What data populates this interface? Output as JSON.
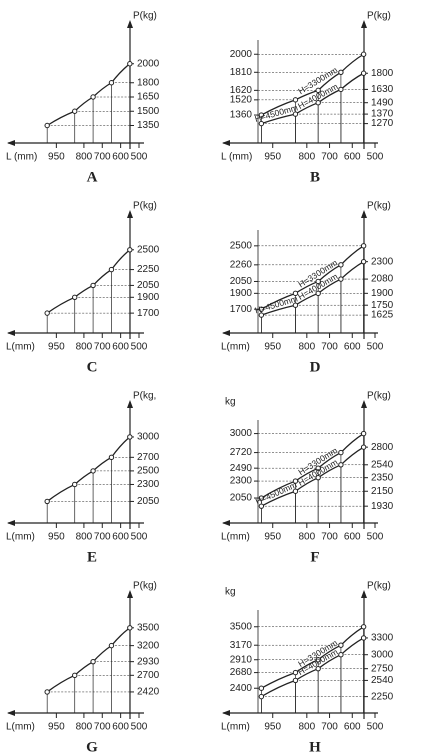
{
  "chart_data": [
    {
      "type": "line",
      "title": "A",
      "xlabel": "L (mm)",
      "ylabel": "P(kg)",
      "color": "#222",
      "x": [
        1000,
        850,
        750,
        650,
        550
      ],
      "xlim": [
        1050,
        500
      ],
      "xticks": [
        950,
        800,
        700,
        600,
        500
      ],
      "values": [
        1350,
        1500,
        1650,
        1800,
        2000
      ],
      "ylim": [
        1250,
        2250
      ],
      "yticks": [
        2000,
        1800,
        1650,
        1500,
        1350
      ]
    },
    {
      "type": "line",
      "title": "B",
      "xlabel": "L (mm)",
      "ylabel": "P(kg)",
      "color": "#222",
      "annotation": "H=4500mm",
      "x": [
        1000,
        850,
        750,
        650,
        550
      ],
      "xlim": [
        1050,
        500
      ],
      "xticks": [
        950,
        800,
        700,
        600,
        500
      ],
      "series": [
        {
          "name": "H=3300mm",
          "values": [
            1360,
            1520,
            1620,
            1810,
            2000
          ]
        },
        {
          "name": "H=4000mm",
          "axis": "y2",
          "values": [
            1270,
            1370,
            1490,
            1630,
            1800
          ]
        }
      ],
      "ylim": [
        1150,
        2150
      ],
      "yticks": [
        2000,
        1810,
        1620,
        1520,
        1360
      ],
      "y2lim": [
        1150,
        2150
      ],
      "y2ticks": [
        1800,
        1630,
        1490,
        1370,
        1270
      ]
    },
    {
      "type": "line",
      "title": "C",
      "xlabel": "L(mm)",
      "ylabel": "P(kg)",
      "color": "#222",
      "x": [
        1000,
        850,
        750,
        650,
        550
      ],
      "xlim": [
        1050,
        500
      ],
      "xticks": [
        950,
        800,
        700,
        600,
        500
      ],
      "values": [
        1700,
        1900,
        2050,
        2250,
        2500
      ],
      "ylim": [
        1550,
        2750
      ],
      "yticks": [
        2500,
        2250,
        2050,
        1900,
        1700
      ]
    },
    {
      "type": "line",
      "title": "D",
      "xlabel": "L(mm)",
      "ylabel": "P(kg)",
      "color": "#222",
      "annotation": "H=4500mm",
      "x": [
        1000,
        850,
        750,
        650,
        550
      ],
      "xlim": [
        1050,
        500
      ],
      "xticks": [
        950,
        800,
        700,
        600,
        500
      ],
      "series": [
        {
          "name": "H=3300mm",
          "values": [
            1700,
            1900,
            2050,
            2260,
            2500
          ]
        },
        {
          "name": "H=4000mm",
          "axis": "y2",
          "values": [
            1625,
            1750,
            1900,
            2080,
            2300
          ]
        }
      ],
      "ylim": [
        1500,
        2700
      ],
      "yticks": [
        2500,
        2260,
        2050,
        1900,
        1700
      ],
      "y2lim": [
        1500,
        2700
      ],
      "y2ticks": [
        2300,
        2080,
        1900,
        1750,
        1625
      ]
    },
    {
      "type": "line",
      "title": "E",
      "xlabel": "L(mm)",
      "ylabel": "P(kg,",
      "color": "#222",
      "x": [
        1000,
        850,
        750,
        650,
        550
      ],
      "xlim": [
        1050,
        500
      ],
      "xticks": [
        950,
        800,
        700,
        600,
        500
      ],
      "values": [
        2050,
        2300,
        2500,
        2700,
        3000
      ],
      "ylim": [
        1850,
        3250
      ],
      "yticks": [
        3000,
        2700,
        2500,
        2300,
        2050
      ]
    },
    {
      "type": "line",
      "title": "F",
      "xlabel": "L(mm)",
      "ylabel": "P(kg)",
      "yunit": "kg",
      "color": "#222",
      "annotation": "H=4500mm",
      "x": [
        1000,
        850,
        750,
        650,
        550
      ],
      "xlim": [
        1050,
        500
      ],
      "xticks": [
        950,
        800,
        700,
        600,
        500
      ],
      "series": [
        {
          "name": "H=3300mm",
          "values": [
            2050,
            2300,
            2490,
            2720,
            3000
          ]
        },
        {
          "name": "H=4000mm",
          "axis": "y2",
          "values": [
            1930,
            2150,
            2350,
            2540,
            2800
          ]
        }
      ],
      "ylim": [
        1800,
        3200
      ],
      "yticks": [
        3000,
        2720,
        2490,
        2300,
        2050
      ],
      "y2lim": [
        1800,
        3200
      ],
      "y2ticks": [
        2800,
        2540,
        2350,
        2150,
        1930
      ]
    },
    {
      "type": "line",
      "title": "G",
      "xlabel": "L(mm)",
      "ylabel": "P(kg)",
      "color": "#222",
      "x": [
        1000,
        850,
        750,
        650,
        550
      ],
      "xlim": [
        1050,
        500
      ],
      "xticks": [
        950,
        800,
        700,
        600,
        500
      ],
      "values": [
        2420,
        2700,
        2930,
        3200,
        3500
      ],
      "ylim": [
        2200,
        3800
      ],
      "yticks": [
        3500,
        3200,
        2930,
        2700,
        2420
      ]
    },
    {
      "type": "line",
      "title": "H",
      "xlabel": "L(mm)",
      "ylabel": "P(kg)",
      "yunit": "kg",
      "color": "#222",
      "x": [
        1000,
        850,
        750,
        650,
        550
      ],
      "xlim": [
        1050,
        500
      ],
      "xticks": [
        950,
        800,
        700,
        600,
        500
      ],
      "series": [
        {
          "name": "H=3300mm",
          "values": [
            2400,
            2680,
            2910,
            3170,
            3500
          ]
        },
        {
          "name": "H=4000mm",
          "axis": "y2",
          "values": [
            2250,
            2540,
            2750,
            3000,
            3300
          ]
        }
      ],
      "ylim": [
        2100,
        3800
      ],
      "yticks": [
        3500,
        3170,
        2910,
        2680,
        2400
      ],
      "y2lim": [
        2100,
        3800
      ],
      "y2ticks": [
        3300,
        3000,
        2750,
        2540,
        2250
      ]
    }
  ]
}
